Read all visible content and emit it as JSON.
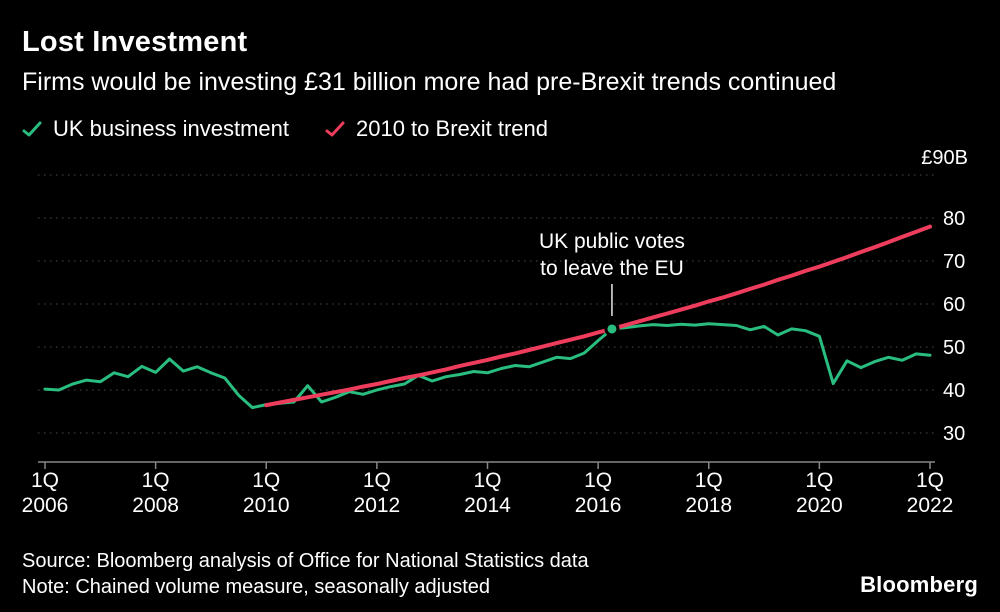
{
  "header": {
    "title": "Lost Investment",
    "subtitle": "Firms would be investing £31 billion more had pre-Brexit trends continued"
  },
  "chart_data": {
    "type": "line",
    "title": "Lost Investment",
    "subtitle": "Firms would be investing £31 billion more had pre-Brexit trends continued",
    "x_unit": "quarter",
    "x_range": [
      "1Q 2006",
      "1Q 2022"
    ],
    "y_axis": {
      "top_label": "£90B",
      "gridlines": [
        90,
        80,
        70,
        60,
        50,
        40,
        30
      ],
      "ticks": [
        80,
        70,
        60,
        50,
        40,
        30
      ],
      "ylim": [
        30,
        90
      ]
    },
    "x_axis": {
      "ticks": [
        {
          "q": 0,
          "line1": "1Q",
          "line2": "2006"
        },
        {
          "q": 8,
          "line1": "1Q",
          "line2": "2008"
        },
        {
          "q": 16,
          "line1": "1Q",
          "line2": "2010"
        },
        {
          "q": 24,
          "line1": "1Q",
          "line2": "2012"
        },
        {
          "q": 32,
          "line1": "1Q",
          "line2": "2014"
        },
        {
          "q": 40,
          "line1": "1Q",
          "line2": "2016"
        },
        {
          "q": 48,
          "line1": "1Q",
          "line2": "2018"
        },
        {
          "q": 56,
          "line1": "1Q",
          "line2": "2020"
        },
        {
          "q": 64,
          "line1": "1Q",
          "line2": "2022"
        }
      ]
    },
    "series": [
      {
        "name": "UK business investment",
        "color": "#29bd7f",
        "start_quarter": 0,
        "values": [
          40.2,
          40.0,
          41.4,
          42.3,
          41.9,
          44.0,
          43.1,
          45.5,
          44.1,
          47.2,
          44.4,
          45.4,
          44.0,
          42.8,
          38.8,
          35.9,
          36.6,
          36.9,
          37.2,
          41.0,
          37.2,
          38.3,
          39.6,
          39.0,
          40.0,
          40.8,
          41.4,
          43.4,
          42.1,
          43.1,
          43.6,
          44.3,
          44.0,
          45.0,
          45.7,
          45.4,
          46.5,
          47.6,
          47.3,
          48.6,
          51.5,
          54.2,
          54.5,
          54.9,
          55.2,
          55.0,
          55.3,
          55.1,
          55.4,
          55.2,
          55.0,
          54.0,
          54.8,
          52.8,
          54.2,
          53.8,
          52.5,
          41.5,
          46.8,
          45.2,
          46.6,
          47.6,
          46.9,
          48.4,
          48.1
        ]
      },
      {
        "name": "2010 to Brexit trend",
        "color": "#ee3d5c",
        "start_quarter": 16,
        "values": [
          36.5,
          37.1,
          37.7,
          38.3,
          38.9,
          39.5,
          40.1,
          40.8,
          41.4,
          42.1,
          42.8,
          43.4,
          44.1,
          44.8,
          45.6,
          46.3,
          47.0,
          47.8,
          48.5,
          49.3,
          50.1,
          50.9,
          51.7,
          52.5,
          53.4,
          54.2,
          55.1,
          56.0,
          56.9,
          57.8,
          58.7,
          59.6,
          60.6,
          61.5,
          62.5,
          63.5,
          64.5,
          65.6,
          66.6,
          67.7,
          68.7,
          69.8,
          70.9,
          72.1,
          73.2,
          74.4,
          75.6,
          76.8,
          78.0
        ]
      }
    ],
    "annotation": {
      "line1": "UK public votes",
      "line2": "to leave the EU",
      "quarter_index": 41,
      "value": 54.2
    }
  },
  "footer": {
    "source": "Source: Bloomberg analysis of Office for National Statistics data",
    "note": "Note: Chained volume measure, seasonally adjusted",
    "logo": "Bloomberg"
  },
  "colors": {
    "background": "#000000",
    "grid": "#4a4a4a",
    "axis": "#878787",
    "text": "#ffffff"
  }
}
